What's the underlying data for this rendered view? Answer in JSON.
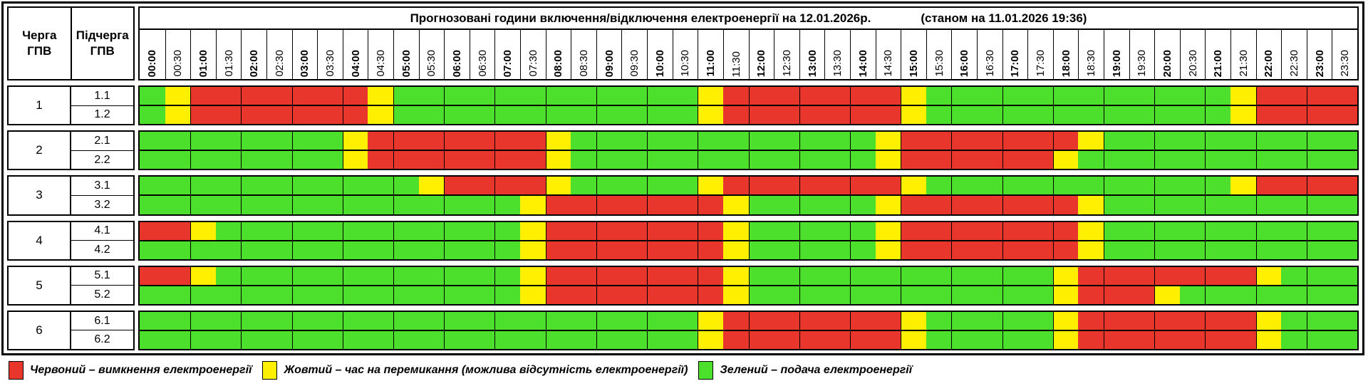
{
  "header": {
    "title": "Прогнозовані години включення/відключення електроенергії на 12.01.2026р.",
    "as_of": "(станом на 11.01.2026 19:36)",
    "queue_col_label": "Черга\nГПВ",
    "subqueue_col_label": "Підчерга\nГПВ"
  },
  "time_slots": [
    "00:00",
    "00:30",
    "01:00",
    "01:30",
    "02:00",
    "02:30",
    "03:00",
    "03:30",
    "04:00",
    "04:30",
    "05:00",
    "05:30",
    "06:00",
    "06:30",
    "07:00",
    "07:30",
    "08:00",
    "08:30",
    "09:00",
    "09:30",
    "10:00",
    "10:30",
    "11:00",
    "11:30",
    "12:00",
    "12:30",
    "13:00",
    "13:30",
    "14:00",
    "14:30",
    "15:00",
    "15:30",
    "16:00",
    "16:30",
    "17:00",
    "17:30",
    "18:00",
    "18:30",
    "19:00",
    "19:30",
    "20:00",
    "20:30",
    "21:00",
    "21:30",
    "22:00",
    "22:30",
    "23:00",
    "23:30"
  ],
  "colors": {
    "G": "#4cdf2c",
    "Y": "#ffef00",
    "R": "#e9362d"
  },
  "color_names": {
    "G": "green",
    "Y": "yellow",
    "R": "red"
  },
  "queues": [
    {
      "number": "1",
      "rows": [
        {
          "label": "1.1",
          "cells": "GYRRRRRRRYGGGGGGGGGGGGYRRRRRRRYGGGGGGGGGGGGYRRRR"
        },
        {
          "label": "1.2",
          "cells": "GYRRRRRRRYGGGGGGGGGGGGYRRRRRRRYGGGGGGGGGGGGYRRRR"
        }
      ]
    },
    {
      "number": "2",
      "rows": [
        {
          "label": "2.1",
          "cells": "GGGGGGGGYRRRRRRRYGGGGGGGGGGGGYRRRRRRRYGGGGGGGGGG"
        },
        {
          "label": "2.2",
          "cells": "GGGGGGGGYRRRRRRRYGGGGGGGGGGGGYRRRRRRYGGGGGGGGGGG"
        }
      ]
    },
    {
      "number": "3",
      "rows": [
        {
          "label": "3.1",
          "cells": "GGGGGGGGGGGYRRRRYGGGGGYRRRRRRRYGGGGGGGGGGGGYRRRR"
        },
        {
          "label": "3.2",
          "cells": "GGGGGGGGGGGGGGGYRRRRRRRYGGGGGYRRRRRRRYGGGGGGGGGG"
        }
      ]
    },
    {
      "number": "4",
      "rows": [
        {
          "label": "4.1",
          "cells": "RRYGGGGGGGGGGGGYRRRRRRRYGGGGGYRRRRRRRYGGGGGGGGGG"
        },
        {
          "label": "4.2",
          "cells": "GGGGGGGGGGGGGGGYRRRRRRRYGGGGGYRRRRRRRYGGGGGGGGGG"
        }
      ]
    },
    {
      "number": "5",
      "rows": [
        {
          "label": "5.1",
          "cells": "RRYGGGGGGGGGGGGYRRRRRRRYGGGGGGGGGGGGYRRRRRRRYGGG"
        },
        {
          "label": "5.2",
          "cells": "GGGGGGGGGGGGGGGYRRRRRRRYGGGGGGGGGGGGYRRRYGGGGGGG"
        }
      ]
    },
    {
      "number": "6",
      "rows": [
        {
          "label": "6.1",
          "cells": "GGGGGGGGGGGGGGGGGGGGGGYRRRRRRRYGGGGGYRRRRRRRYGGG"
        },
        {
          "label": "6.2",
          "cells": "GGGGGGGGGGGGGGGGGGGGGGYRRRRRRRYGGGGGYRRRRRRRYGGG"
        }
      ]
    }
  ],
  "legend": [
    {
      "key": "R",
      "label": "Червоний – вимкнення електроенергії"
    },
    {
      "key": "Y",
      "label": "Жовтий – час на перемикання (можлива відсутність електроенергії)"
    },
    {
      "key": "G",
      "label": "Зелений – подача електроенергії"
    }
  ]
}
